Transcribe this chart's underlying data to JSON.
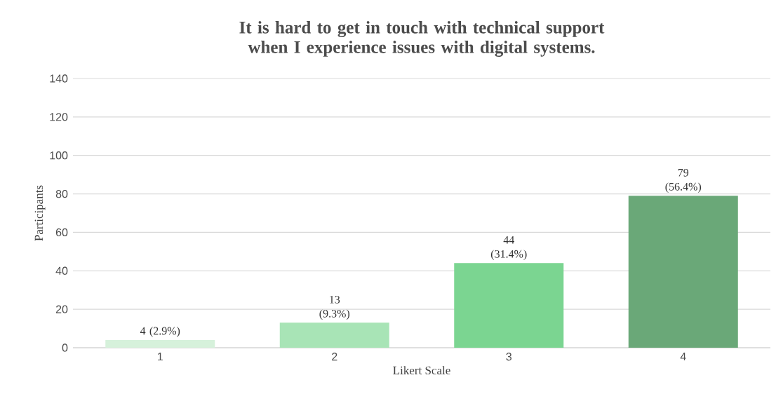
{
  "chart_data": {
    "type": "bar",
    "title": "It is hard to get in touch with technical support when I experience issues with digital systems.",
    "xlabel": "Likert Scale",
    "ylabel": "Participants",
    "categories": [
      "1",
      "2",
      "3",
      "4"
    ],
    "values": [
      4,
      13,
      44,
      79
    ],
    "colors": [
      "#d6f1db",
      "#a8e4b6",
      "#7bd591",
      "#6aa878"
    ],
    "value_labels": [
      "4 (2.9%)",
      "13 (9.3%)",
      "44 (31.4%)",
      "79 (56.4%)"
    ],
    "ylim": [
      0,
      140
    ],
    "yticks": [
      0,
      20,
      40,
      60,
      80,
      100,
      120,
      140
    ],
    "grid": "y"
  }
}
